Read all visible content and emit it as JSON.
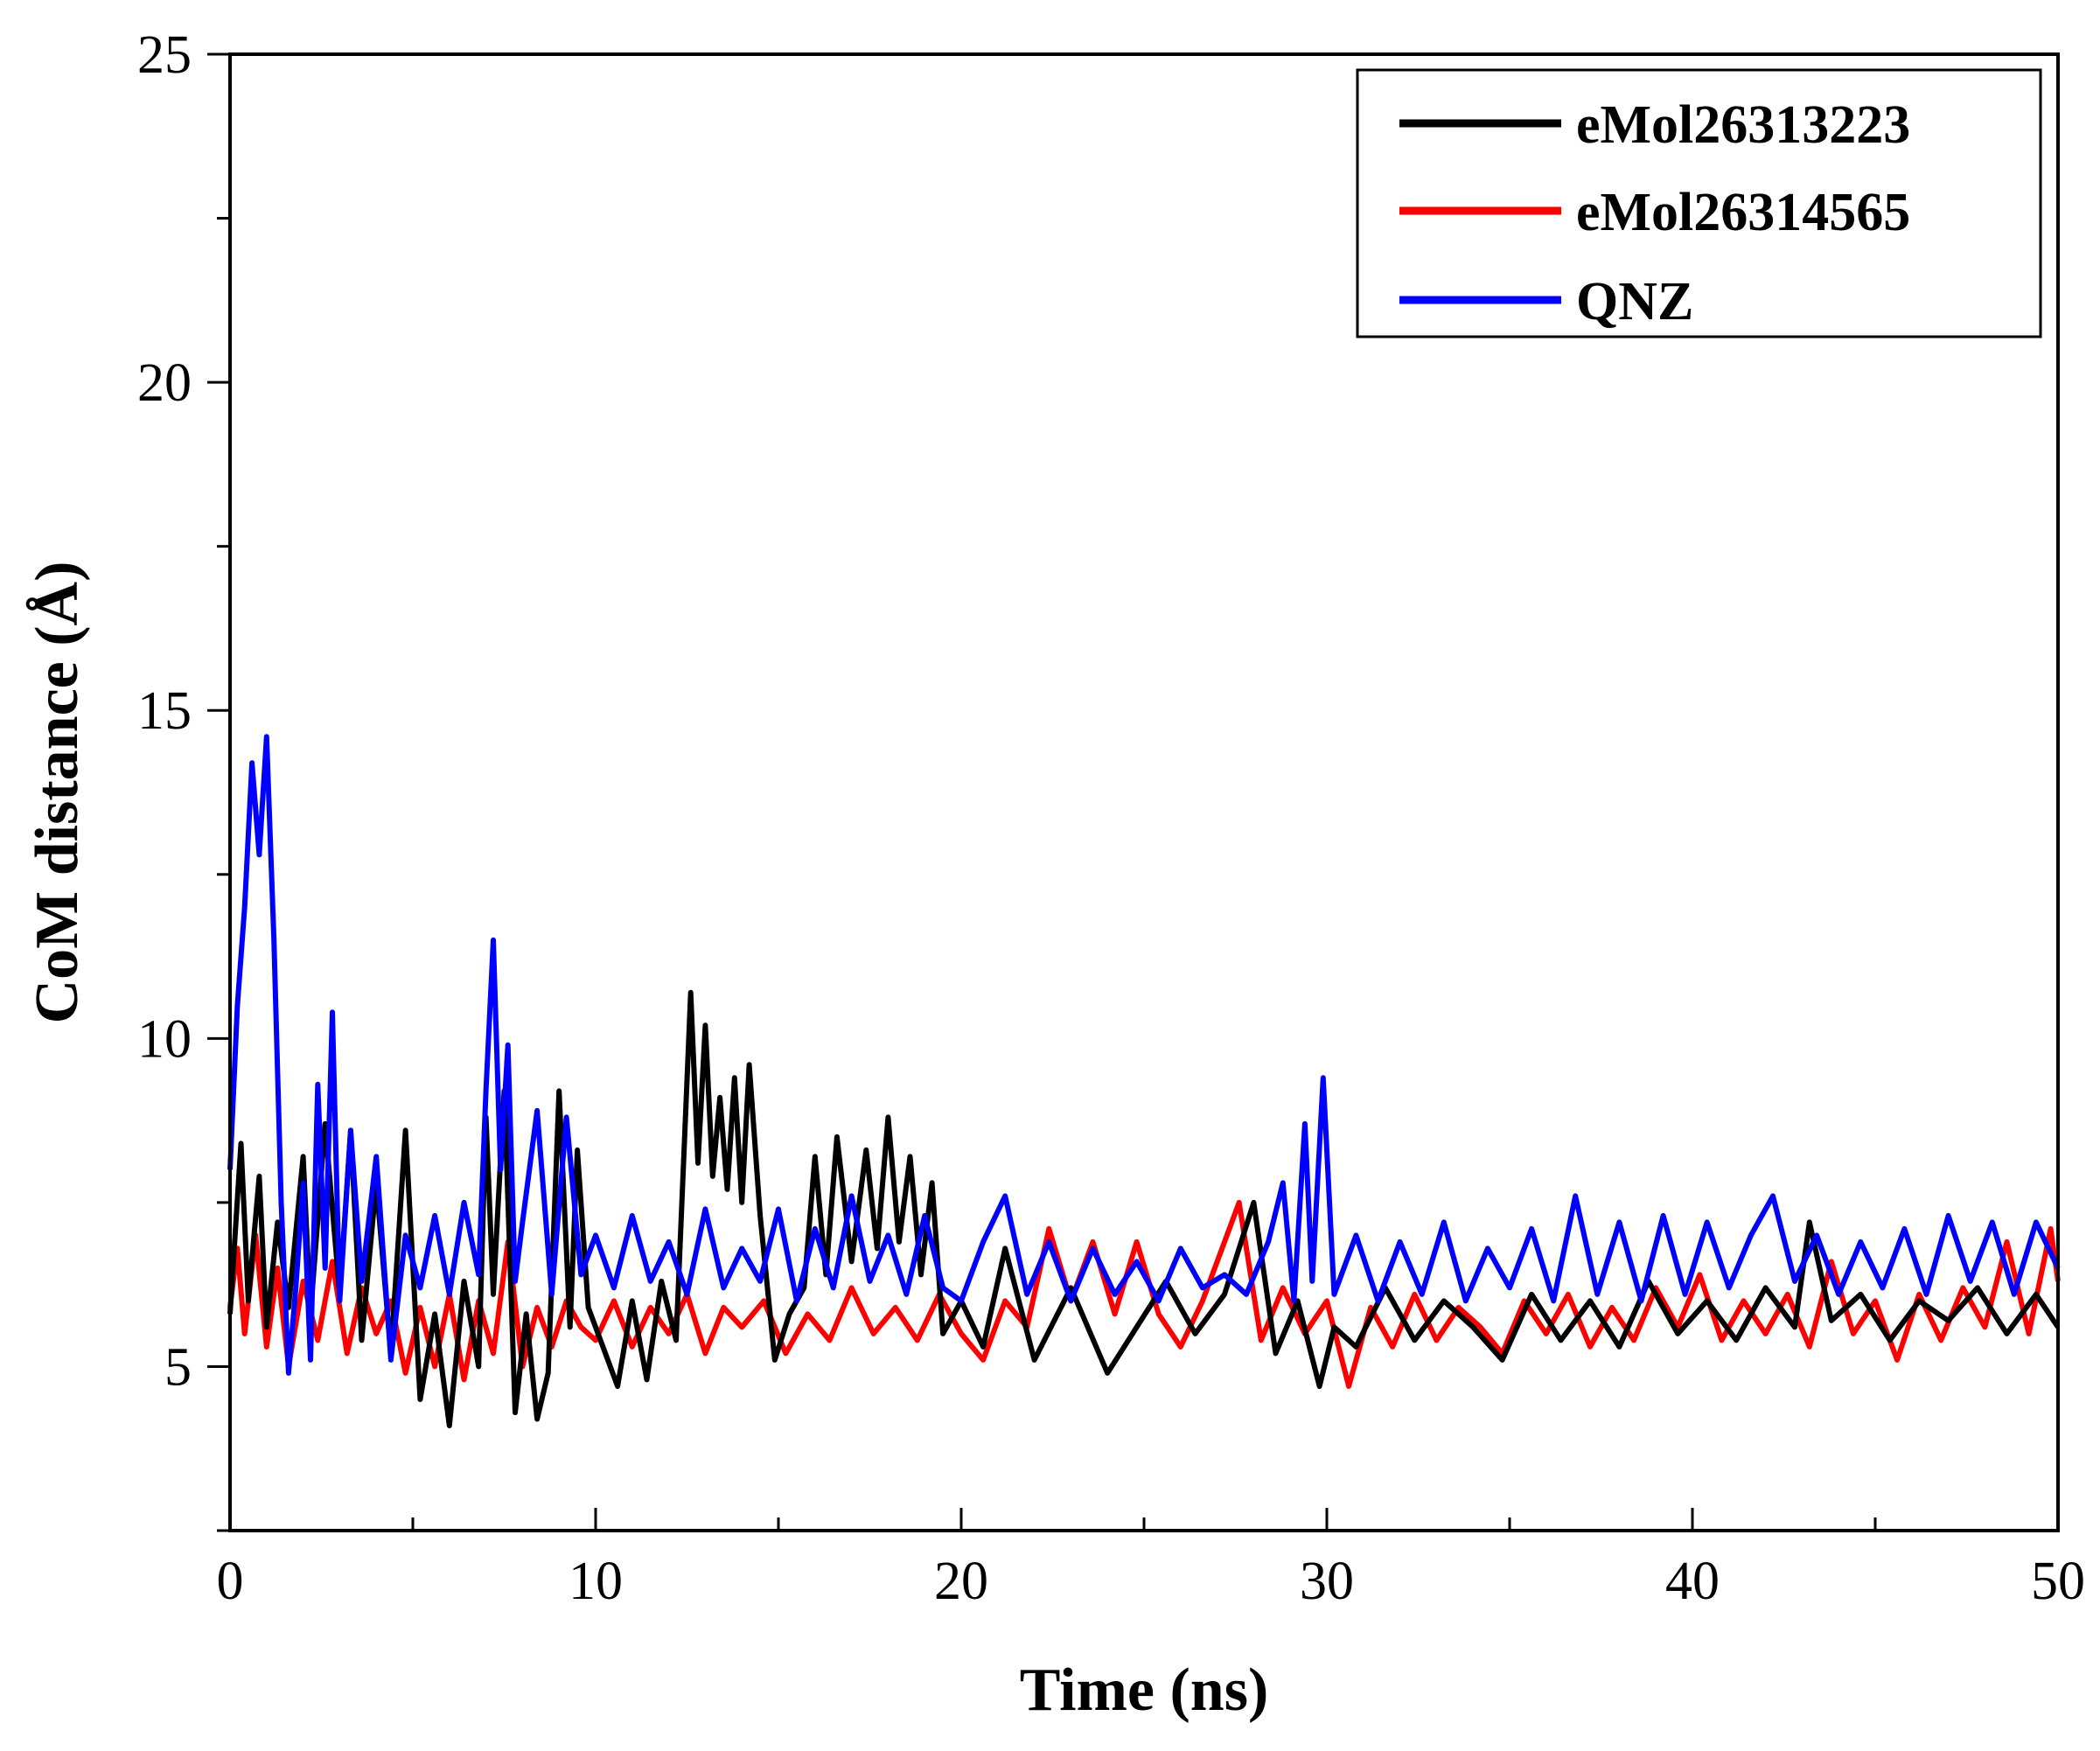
{
  "chart_data": {
    "type": "line",
    "title": "",
    "xlabel": "Time (ns)",
    "ylabel": "CoM distance (Å)",
    "xlim": [
      0,
      50
    ],
    "ylim": [
      2.5,
      25
    ],
    "xticks": [
      0,
      10,
      20,
      30,
      40,
      50
    ],
    "yticks": [
      5,
      10,
      15,
      20,
      25
    ],
    "grid": false,
    "legend_position": "top-right",
    "series": [
      {
        "name": "eMol26313223",
        "color": "#000000",
        "x": [
          0,
          0.3,
          0.5,
          0.8,
          1.0,
          1.3,
          1.6,
          2.0,
          2.2,
          2.6,
          3.0,
          3.3,
          3.6,
          4.0,
          4.4,
          4.8,
          5.2,
          5.6,
          6.0,
          6.4,
          6.8,
          7.0,
          7.2,
          7.5,
          7.8,
          8.1,
          8.4,
          8.7,
          9.0,
          9.3,
          9.5,
          9.8,
          10.2,
          10.6,
          11.0,
          11.4,
          11.8,
          12.2,
          12.6,
          12.8,
          13.0,
          13.2,
          13.4,
          13.6,
          13.8,
          14.0,
          14.2,
          14.5,
          14.9,
          15.3,
          15.7,
          16.0,
          16.3,
          16.6,
          17.0,
          17.4,
          17.7,
          18.0,
          18.3,
          18.6,
          18.9,
          19.2,
          19.5,
          20.0,
          20.6,
          21.2,
          22.0,
          23.0,
          24.0,
          24.8,
          25.6,
          26.4,
          27.2,
          28.0,
          28.6,
          29.2,
          29.8,
          30.2,
          30.8,
          31.6,
          32.4,
          33.2,
          34.0,
          34.8,
          35.6,
          36.4,
          37.2,
          38.0,
          38.8,
          39.6,
          40.4,
          41.2,
          42.0,
          42.8,
          43.2,
          43.8,
          44.6,
          45.4,
          46.2,
          47.0,
          47.8,
          48.6,
          49.4,
          50.0
        ],
        "values": [
          5.8,
          8.4,
          6.0,
          7.9,
          5.6,
          7.2,
          5.9,
          8.2,
          5.8,
          8.7,
          6.1,
          8.6,
          5.4,
          7.8,
          5.2,
          8.6,
          4.5,
          5.8,
          4.1,
          6.3,
          5.0,
          8.8,
          6.1,
          9.2,
          4.3,
          5.8,
          4.2,
          4.9,
          9.2,
          5.6,
          8.3,
          5.9,
          5.3,
          4.7,
          6.0,
          4.8,
          6.3,
          5.4,
          10.7,
          8.1,
          10.2,
          7.9,
          9.1,
          7.7,
          9.4,
          7.5,
          9.6,
          7.3,
          5.1,
          5.8,
          6.2,
          8.2,
          6.4,
          8.5,
          6.6,
          8.3,
          6.8,
          8.8,
          6.9,
          8.2,
          6.4,
          7.8,
          5.5,
          6.0,
          5.3,
          6.8,
          5.1,
          6.2,
          4.9,
          5.6,
          6.3,
          5.5,
          6.1,
          7.5,
          5.2,
          6.0,
          4.7,
          5.6,
          5.3,
          6.2,
          5.4,
          6.0,
          5.6,
          5.1,
          6.1,
          5.4,
          6.0,
          5.3,
          6.3,
          5.5,
          6.0,
          5.4,
          6.2,
          5.6,
          7.2,
          5.7,
          6.1,
          5.4,
          6.0,
          5.7,
          6.2,
          5.5,
          6.1,
          5.6
        ]
      },
      {
        "name": "eMol26314565",
        "color": "#ff0000",
        "x": [
          0,
          0.2,
          0.4,
          0.7,
          1.0,
          1.3,
          1.6,
          2.0,
          2.4,
          2.8,
          3.2,
          3.6,
          4.0,
          4.4,
          4.8,
          5.2,
          5.6,
          6.0,
          6.4,
          6.8,
          7.2,
          7.6,
          8.0,
          8.4,
          8.8,
          9.2,
          9.6,
          10.0,
          10.5,
          11.0,
          11.5,
          12.0,
          12.5,
          13.0,
          13.5,
          14.0,
          14.6,
          15.2,
          15.8,
          16.4,
          17.0,
          17.6,
          18.2,
          18.8,
          19.4,
          20.0,
          20.6,
          21.2,
          21.8,
          22.4,
          23.0,
          23.6,
          24.2,
          24.8,
          25.4,
          26.0,
          26.6,
          27.2,
          27.6,
          28.2,
          28.8,
          29.4,
          30.0,
          30.6,
          31.2,
          31.8,
          32.4,
          33.0,
          33.6,
          34.2,
          34.8,
          35.4,
          36.0,
          36.6,
          37.2,
          37.8,
          38.4,
          39.0,
          39.6,
          40.2,
          40.8,
          41.4,
          42.0,
          42.6,
          43.2,
          43.8,
          44.4,
          45.0,
          45.6,
          46.2,
          46.8,
          47.4,
          48.0,
          48.6,
          49.2,
          49.8,
          50.0
        ],
        "values": [
          5.9,
          6.8,
          5.5,
          7.0,
          5.3,
          6.5,
          5.0,
          6.3,
          5.4,
          6.6,
          5.2,
          6.2,
          5.5,
          6.0,
          4.9,
          5.9,
          5.0,
          6.1,
          4.8,
          6.0,
          5.2,
          6.9,
          5.0,
          5.9,
          5.3,
          6.0,
          5.6,
          5.4,
          6.0,
          5.3,
          5.9,
          5.5,
          6.1,
          5.2,
          5.9,
          5.6,
          6.0,
          5.2,
          5.8,
          5.4,
          6.2,
          5.5,
          5.9,
          5.4,
          6.1,
          5.5,
          5.1,
          6.0,
          5.6,
          7.1,
          6.0,
          6.9,
          5.8,
          6.9,
          5.8,
          5.3,
          6.0,
          6.9,
          7.5,
          5.4,
          6.2,
          5.5,
          6.0,
          4.7,
          5.9,
          5.3,
          6.1,
          5.4,
          5.9,
          5.6,
          5.2,
          6.0,
          5.5,
          6.1,
          5.3,
          5.9,
          5.4,
          6.2,
          5.6,
          6.4,
          5.4,
          6.0,
          5.5,
          6.1,
          5.3,
          6.6,
          5.5,
          6.0,
          5.1,
          6.1,
          5.4,
          6.2,
          5.6,
          6.9,
          5.5,
          7.1,
          6.3
        ]
      },
      {
        "name": "QNZ",
        "color": "#0000ff",
        "x": [
          0,
          0.2,
          0.4,
          0.6,
          0.8,
          1.0,
          1.2,
          1.4,
          1.6,
          1.8,
          2.0,
          2.2,
          2.4,
          2.6,
          2.8,
          3.0,
          3.3,
          3.6,
          4.0,
          4.4,
          4.8,
          5.2,
          5.6,
          6.0,
          6.4,
          6.8,
          7.0,
          7.2,
          7.4,
          7.6,
          7.8,
          8.0,
          8.4,
          8.8,
          9.2,
          9.6,
          10.0,
          10.5,
          11.0,
          11.5,
          12.0,
          12.5,
          13.0,
          13.5,
          14.0,
          14.5,
          15.0,
          15.5,
          16.0,
          16.5,
          17.0,
          17.5,
          18.0,
          18.5,
          19.0,
          19.5,
          20.0,
          20.6,
          21.2,
          21.8,
          22.4,
          23.0,
          23.6,
          24.2,
          24.8,
          25.4,
          26.0,
          26.6,
          27.2,
          27.8,
          28.4,
          28.8,
          29.1,
          29.4,
          29.6,
          29.9,
          30.2,
          30.8,
          31.4,
          32.0,
          32.6,
          33.2,
          33.8,
          34.4,
          35.0,
          35.6,
          36.2,
          36.8,
          37.4,
          38.0,
          38.6,
          39.2,
          39.8,
          40.4,
          41.0,
          41.6,
          42.2,
          42.8,
          43.4,
          44.0,
          44.6,
          45.2,
          45.8,
          46.4,
          47.0,
          47.6,
          48.2,
          48.8,
          49.4,
          50.0
        ],
        "values": [
          8.0,
          10.5,
          12.0,
          14.2,
          12.8,
          14.6,
          11.5,
          7.5,
          4.9,
          6.2,
          7.8,
          5.1,
          9.3,
          6.5,
          10.4,
          6.0,
          8.6,
          6.3,
          8.2,
          5.1,
          7.0,
          6.2,
          7.3,
          6.1,
          7.5,
          6.4,
          9.2,
          11.5,
          8.0,
          9.9,
          6.3,
          7.2,
          8.9,
          6.1,
          8.8,
          6.4,
          7.0,
          6.2,
          7.3,
          6.3,
          6.9,
          6.1,
          7.4,
          6.2,
          6.8,
          6.3,
          7.4,
          6.0,
          7.1,
          6.2,
          7.6,
          6.3,
          7.0,
          6.1,
          7.3,
          6.2,
          6.0,
          6.9,
          7.6,
          6.1,
          6.9,
          6.0,
          6.8,
          6.1,
          6.6,
          6.0,
          6.8,
          6.2,
          6.4,
          6.1,
          6.9,
          7.8,
          6.0,
          8.7,
          6.3,
          9.4,
          6.1,
          7.0,
          6.0,
          6.9,
          6.1,
          7.2,
          6.0,
          6.8,
          6.2,
          7.1,
          6.0,
          7.6,
          6.1,
          7.2,
          6.0,
          7.3,
          6.1,
          7.2,
          6.2,
          7.0,
          7.6,
          6.3,
          7.0,
          6.1,
          6.9,
          6.2,
          7.1,
          6.1,
          7.3,
          6.3,
          7.2,
          6.1,
          7.2,
          6.5
        ]
      }
    ]
  }
}
